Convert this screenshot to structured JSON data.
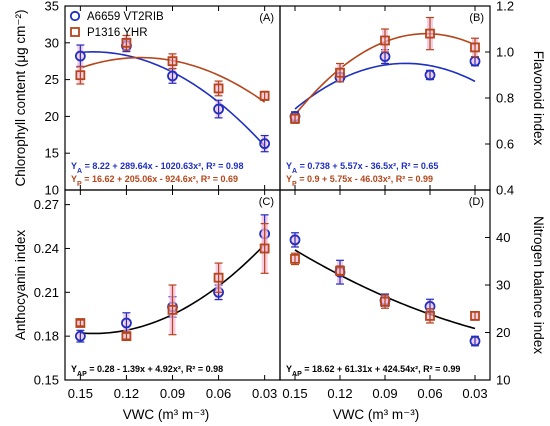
{
  "colors": {
    "series_a": "#1f2fbf",
    "series_p": "#b5451b",
    "fit_ap": "#000000",
    "errbar_bg": "#f4b6d6"
  },
  "chart_data": {
    "type": "scatter",
    "x_categories": [
      "0.15",
      "0.12",
      "0.09",
      "0.06",
      "0.03"
    ],
    "x_values": [
      0.15,
      0.12,
      0.09,
      0.06,
      0.03
    ],
    "xlabel": "VWC (m³ m⁻³)",
    "legend": {
      "placement": "top-left of panel A",
      "entries": [
        {
          "name": "A6659 VT2RIB",
          "marker": "circle",
          "color": "#1f2fbf"
        },
        {
          "name": "P1316 YHR",
          "marker": "square",
          "color": "#b5451b"
        }
      ]
    },
    "panels": [
      {
        "label": "(A)",
        "ylabel": "Chlorophyll content (μg cm⁻²)",
        "yaxis_side": "left",
        "ylim": [
          10,
          35
        ],
        "yticks": [
          10,
          15,
          20,
          25,
          30,
          35
        ],
        "series": [
          {
            "name": "A6659 VT2RIB",
            "marker": "circle",
            "values": [
              28.2,
              29.6,
              25.5,
              21.0,
              16.3
            ],
            "errors": [
              1.5,
              0.8,
              1.0,
              1.2,
              1.1
            ]
          },
          {
            "name": "P1316 YHR",
            "marker": "square",
            "values": [
              25.6,
              30.0,
              27.5,
              23.8,
              22.8
            ],
            "errors": [
              1.2,
              1.0,
              1.0,
              1.0,
              0.6
            ]
          }
        ],
        "fits": [
          {
            "series": "A6659 VT2RIB",
            "coeffs": [
              8.22,
              289.64,
              -1020.63
            ]
          },
          {
            "series": "P1316 YHR",
            "coeffs": [
              16.62,
              205.06,
              -924.6
            ]
          }
        ],
        "equations": [
          {
            "text": "YA = 8.22 + 289.64x - 1020.63x², R² = 0.98",
            "color": "#1f2fbf"
          },
          {
            "text": "YP = 16.62 + 205.06x - 924.6x², R² = 0.69",
            "color": "#b5451b"
          }
        ]
      },
      {
        "label": "(B)",
        "ylabel": "Flavonoid index",
        "yaxis_side": "right",
        "ylim": [
          0.4,
          1.2
        ],
        "yticks": [
          0.4,
          0.6,
          0.8,
          1.0,
          1.2
        ],
        "series": [
          {
            "name": "A6659 VT2RIB",
            "marker": "circle",
            "values": [
              0.72,
              0.89,
              0.98,
              0.9,
              0.96
            ],
            "errors": [
              0.02,
              0.02,
              0.03,
              0.02,
              0.02
            ]
          },
          {
            "name": "P1316 YHR",
            "marker": "square",
            "values": [
              0.71,
              0.91,
              1.05,
              1.08,
              1.02
            ],
            "errors": [
              0.02,
              0.04,
              0.05,
              0.07,
              0.04
            ]
          }
        ],
        "fits": [
          {
            "series": "A6659 VT2RIB",
            "coeffs": [
              0.738,
              5.57,
              -36.5
            ]
          },
          {
            "series": "P1316 YHR",
            "coeffs": [
              0.9,
              5.75,
              -46.03
            ]
          }
        ],
        "equations": [
          {
            "text": "YA = 0.738 + 5.57x - 36.5x², R² = 0.65",
            "color": "#1f2fbf"
          },
          {
            "text": "YP = 0.9 + 5.75x - 46.03x², R² = 0.99",
            "color": "#b5451b"
          }
        ]
      },
      {
        "label": "(C)",
        "ylabel": "Anthocyanin index",
        "yaxis_side": "left",
        "ylim": [
          0.15,
          0.28
        ],
        "yticks": [
          0.15,
          0.18,
          0.21,
          0.24,
          0.27
        ],
        "series": [
          {
            "name": "A6659 VT2RIB",
            "marker": "circle",
            "values": [
              0.18,
              0.189,
              0.2,
              0.21,
              0.25
            ],
            "errors": [
              0.004,
              0.007,
              0.007,
              0.005,
              0.013
            ]
          },
          {
            "name": "P1316 YHR",
            "marker": "square",
            "values": [
              0.189,
              0.18,
              0.198,
              0.22,
              0.24
            ],
            "errors": [
              0.002,
              0.002,
              0.017,
              0.01,
              0.017
            ]
          }
        ],
        "fits": [
          {
            "series": "AP",
            "coeffs": [
              0.28,
              -1.39,
              4.92
            ]
          }
        ],
        "equations": [
          {
            "text": "YAP = 0.28 - 1.39x + 4.92x², R² = 0.98",
            "color": "#000000"
          }
        ]
      },
      {
        "label": "(D)",
        "ylabel": "Nitrogen balance index",
        "yaxis_side": "right",
        "ylim": [
          10,
          50
        ],
        "yticks": [
          10,
          20,
          30,
          40
        ],
        "series": [
          {
            "name": "A6659 VT2RIB",
            "marker": "circle",
            "values": [
              39.5,
              32.7,
              26.8,
              25.5,
              18.2
            ],
            "errors": [
              1.5,
              2.5,
              1.3,
              1.5,
              1.0
            ]
          },
          {
            "name": "P1316 YHR",
            "marker": "square",
            "values": [
              35.5,
              33.0,
              26.5,
              23.5,
              23.5
            ],
            "errors": [
              1.2,
              1.0,
              1.4,
              1.5,
              0.9
            ]
          }
        ],
        "fits": [
          {
            "series": "AP",
            "coeffs": [
              18.62,
              61.31,
              424.54
            ]
          }
        ],
        "equations": [
          {
            "text": "YAP = 18.62 + 61.31x + 424.54x², R² = 0.99",
            "color": "#000000"
          }
        ]
      }
    ]
  }
}
